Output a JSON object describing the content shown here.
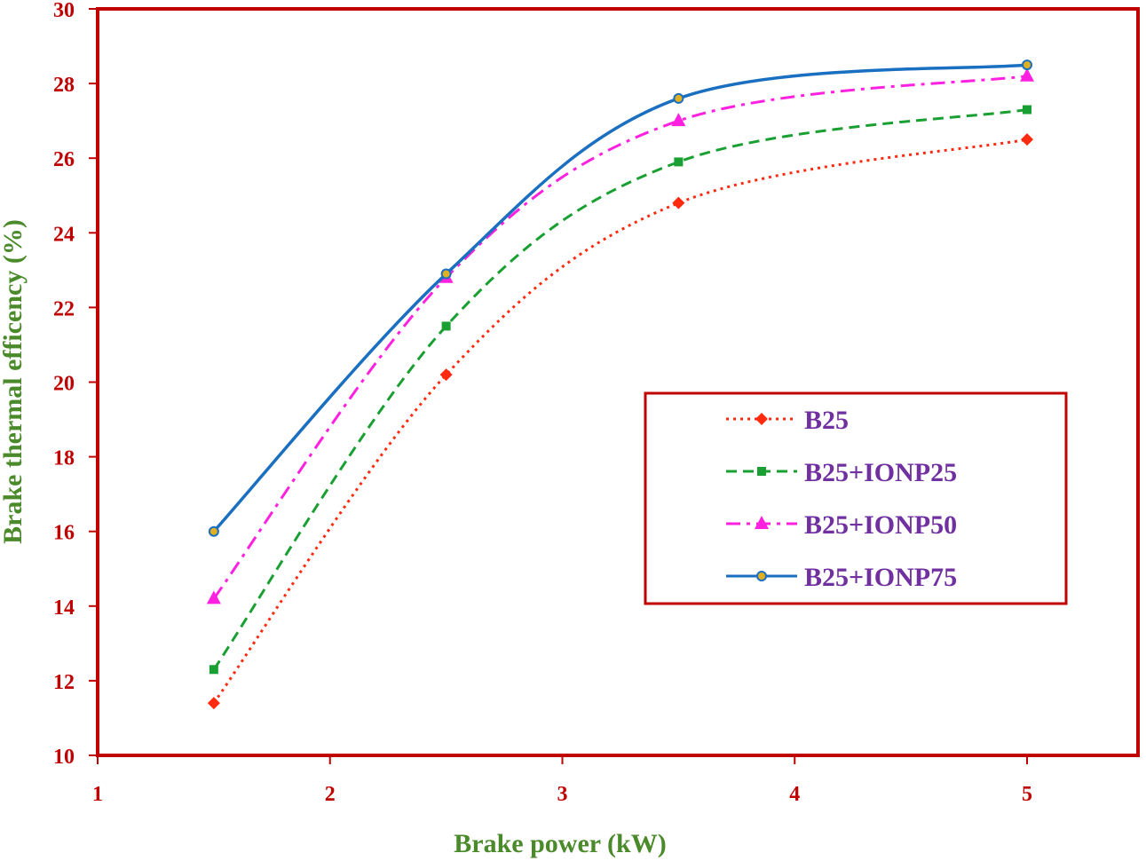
{
  "chart_data": {
    "type": "line",
    "xlabel": "Brake power (kW)",
    "ylabel": "Brake thermal efficency (%)",
    "xlim": [
      1,
      5.5
    ],
    "ylim": [
      10,
      30
    ],
    "xticks": [
      1,
      2,
      3,
      4,
      5
    ],
    "yticks": [
      10,
      12,
      14,
      16,
      18,
      20,
      22,
      24,
      26,
      28,
      30
    ],
    "x": [
      1.5,
      2.5,
      3.5,
      5
    ],
    "legend_position": "right",
    "grid": false,
    "colors": {
      "axis": "#c00000",
      "tick_label": "#c00000",
      "axis_title": "#4a8a2a",
      "legend_text": "#7030a0",
      "frame": "#c00000"
    },
    "series": [
      {
        "name": "B25",
        "values": [
          11.4,
          20.2,
          24.8,
          26.5
        ],
        "color": "#ff2a10",
        "dash": "dotted",
        "marker": "diamond"
      },
      {
        "name": "B25+IONP25",
        "values": [
          12.3,
          21.5,
          25.9,
          27.3
        ],
        "color": "#1aa032",
        "dash": "dashed",
        "marker": "square"
      },
      {
        "name": "B25+IONP50",
        "values": [
          14.2,
          22.8,
          27.0,
          28.2
        ],
        "color": "#ff20e0",
        "dash": "dashdot",
        "marker": "triangle"
      },
      {
        "name": "B25+IONP75",
        "values": [
          16.0,
          22.9,
          27.6,
          28.5
        ],
        "color": "#1a6fc0",
        "dash": "solid",
        "marker": "circle"
      }
    ]
  }
}
